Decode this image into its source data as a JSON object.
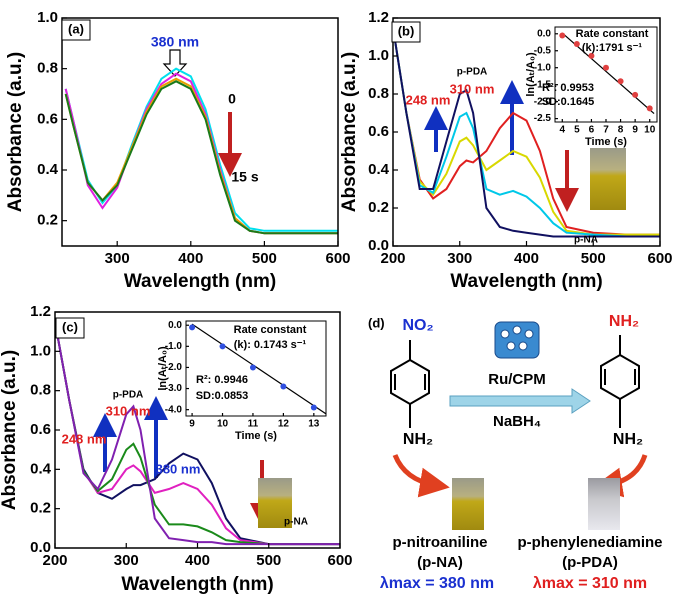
{
  "chart_data": [
    {
      "type": "line",
      "panel_label": "(a)",
      "xlabel": "Wavelength (nm)",
      "ylabel": "Absorbance (a.u.)",
      "xlim": [
        225,
        600
      ],
      "xticks": [
        300,
        400,
        500,
        600
      ],
      "ylim": [
        0.1,
        1.0
      ],
      "yticks": [
        0.2,
        0.4,
        0.6,
        0.8,
        {
          "value": 1.0,
          "label": "1.0"
        }
      ],
      "x": [
        230,
        240,
        260,
        280,
        300,
        320,
        340,
        360,
        380,
        400,
        420,
        440,
        460,
        480,
        500,
        550,
        600
      ],
      "series": [
        {
          "color": "#00e0ee",
          "values": [
            0.72,
            0.6,
            0.36,
            0.27,
            0.34,
            0.5,
            0.65,
            0.76,
            0.8,
            0.77,
            0.64,
            0.42,
            0.23,
            0.17,
            0.16,
            0.16,
            0.16
          ]
        },
        {
          "color": "#e020e0",
          "values": [
            0.72,
            0.6,
            0.34,
            0.25,
            0.33,
            0.49,
            0.64,
            0.74,
            0.78,
            0.75,
            0.62,
            0.4,
            0.21,
            0.16,
            0.15,
            0.15,
            0.15
          ]
        },
        {
          "color": "#e8a000",
          "values": [
            0.7,
            0.58,
            0.35,
            0.28,
            0.35,
            0.49,
            0.63,
            0.73,
            0.76,
            0.73,
            0.61,
            0.39,
            0.21,
            0.16,
            0.15,
            0.15,
            0.15
          ]
        },
        {
          "color": "#1a7a1a",
          "values": [
            0.7,
            0.58,
            0.35,
            0.28,
            0.34,
            0.48,
            0.62,
            0.72,
            0.75,
            0.72,
            0.6,
            0.38,
            0.2,
            0.16,
            0.15,
            0.15,
            0.15
          ]
        }
      ],
      "annotations": [
        "380 nm",
        "0",
        "15 s"
      ]
    },
    {
      "type": "line",
      "panel_label": "(b)",
      "xlabel": "Wavelength (nm)",
      "ylabel": "Absorbance (a.u.)",
      "xlim": [
        200,
        600
      ],
      "xticks": [
        200,
        300,
        400,
        500,
        600
      ],
      "ylim": [
        0,
        1.2
      ],
      "yticks": [
        {
          "value": 0,
          "label": "0.0"
        },
        0.2,
        0.4,
        0.6,
        0.8,
        {
          "value": 1.0,
          "label": "1.0"
        },
        1.2
      ],
      "x": [
        200,
        220,
        240,
        260,
        280,
        300,
        310,
        320,
        340,
        360,
        380,
        400,
        420,
        440,
        460,
        500,
        550,
        600
      ],
      "series": [
        {
          "color": "#e02020",
          "values": [
            1.15,
            0.7,
            0.35,
            0.25,
            0.3,
            0.42,
            0.45,
            0.44,
            0.5,
            0.62,
            0.7,
            0.66,
            0.5,
            0.25,
            0.1,
            0.07,
            0.06,
            0.06
          ]
        },
        {
          "color": "#d8d800",
          "values": [
            1.15,
            0.7,
            0.34,
            0.27,
            0.38,
            0.55,
            0.57,
            0.53,
            0.4,
            0.45,
            0.5,
            0.47,
            0.36,
            0.18,
            0.08,
            0.06,
            0.06,
            0.06
          ]
        },
        {
          "color": "#00c8e8",
          "values": [
            1.15,
            0.7,
            0.32,
            0.28,
            0.47,
            0.68,
            0.7,
            0.62,
            0.3,
            0.27,
            0.29,
            0.26,
            0.2,
            0.12,
            0.07,
            0.06,
            0.05,
            0.05
          ]
        },
        {
          "color": "#101060",
          "values": [
            1.15,
            0.7,
            0.3,
            0.3,
            0.55,
            0.8,
            0.82,
            0.7,
            0.2,
            0.1,
            0.08,
            0.07,
            0.06,
            0.05,
            0.05,
            0.05,
            0.05,
            0.05
          ]
        }
      ],
      "annotations": [
        "p-PDA",
        "310 nm",
        "248 nm",
        "p-NA"
      ]
    },
    {
      "type": "scatter",
      "xlabel": "Time (s)",
      "ylabel": "ln(Aₜ/A₀)",
      "xlim": [
        3.5,
        10.5
      ],
      "xticks": [
        4,
        5,
        6,
        7,
        8,
        9,
        10
      ],
      "ylim": [
        -2.6,
        0.2
      ],
      "yticks": [
        {
          "value": 0,
          "label": "0.0"
        },
        -0.5,
        {
          "value": -1.0,
          "label": "-1.0"
        },
        -1.5,
        {
          "value": -2.0,
          "label": "-2.0"
        },
        -2.5
      ],
      "x": [
        4,
        5,
        6,
        7,
        8,
        9,
        10
      ],
      "values": [
        -0.05,
        -0.3,
        -0.65,
        -1.0,
        -1.4,
        -1.8,
        -2.2
      ],
      "color": "#e04040",
      "fit": {
        "x": [
          4,
          10.3
        ],
        "values": [
          0.02,
          -2.35
        ],
        "color": "#000000"
      },
      "annotations": [
        "Rate constant",
        "(k):1791 s⁻¹",
        "R²: 0.9953",
        "SD:0.1645"
      ]
    },
    {
      "type": "line",
      "panel_label": "(c)",
      "xlabel": "Wavelength (nm)",
      "ylabel": "Absorbance (a.u.)",
      "xlim": [
        200,
        600
      ],
      "xticks": [
        200,
        300,
        400,
        500,
        600
      ],
      "ylim": [
        0,
        1.2
      ],
      "yticks": [
        {
          "value": 0,
          "label": "0.0"
        },
        0.2,
        0.4,
        0.6,
        0.8,
        {
          "value": 1.0,
          "label": "1.0"
        },
        1.2
      ],
      "x": [
        200,
        220,
        240,
        260,
        280,
        300,
        310,
        320,
        340,
        360,
        380,
        400,
        420,
        440,
        460,
        500,
        550,
        600
      ],
      "series": [
        {
          "color": "#101060",
          "values": [
            1.15,
            0.75,
            0.4,
            0.28,
            0.25,
            0.3,
            0.32,
            0.32,
            0.35,
            0.43,
            0.48,
            0.45,
            0.33,
            0.15,
            0.05,
            0.02,
            0.02,
            0.02
          ]
        },
        {
          "color": "#e020c0",
          "values": [
            1.15,
            0.75,
            0.39,
            0.28,
            0.3,
            0.4,
            0.42,
            0.39,
            0.28,
            0.3,
            0.33,
            0.3,
            0.22,
            0.1,
            0.04,
            0.02,
            0.02,
            0.02
          ]
        },
        {
          "color": "#1a8a1a",
          "values": [
            1.15,
            0.75,
            0.39,
            0.29,
            0.35,
            0.5,
            0.53,
            0.46,
            0.22,
            0.12,
            0.12,
            0.11,
            0.08,
            0.04,
            0.03,
            0.02,
            0.02,
            0.02
          ]
        },
        {
          "color": "#8020b0",
          "values": [
            1.15,
            0.75,
            0.38,
            0.3,
            0.45,
            0.68,
            0.72,
            0.6,
            0.15,
            0.05,
            0.04,
            0.03,
            0.03,
            0.02,
            0.02,
            0.02,
            0.02,
            0.02
          ]
        }
      ],
      "annotations": [
        "p-PDA",
        "310 nm",
        "248 nm",
        "380 nm",
        "p-NA"
      ]
    },
    {
      "type": "scatter",
      "xlabel": "Time (s)",
      "ylabel": "ln(Aₜ/A₀)",
      "xlim": [
        8.8,
        13.4
      ],
      "xticks": [
        9,
        10,
        11,
        12,
        13
      ],
      "ylim": [
        -4.3,
        0.2
      ],
      "yticks": [
        {
          "value": 0,
          "label": "0.0"
        },
        {
          "value": -1.0,
          "label": "-1.0"
        },
        {
          "value": -2.0,
          "label": "-2.0"
        },
        {
          "value": -3.0,
          "label": "-3.0"
        },
        {
          "value": -4.0,
          "label": "-4.0"
        }
      ],
      "x": [
        9,
        10,
        11,
        12,
        13
      ],
      "values": [
        -0.1,
        -1.0,
        -2.0,
        -2.9,
        -3.9
      ],
      "color": "#3050e0",
      "fit": {
        "x": [
          9,
          13.4
        ],
        "values": [
          0.05,
          -4.2
        ],
        "color": "#000000"
      },
      "annotations": [
        "Rate constant",
        "(k): 0.1743 s⁻¹",
        "R²: 0.9946",
        "SD:0.0853"
      ]
    }
  ],
  "scheme": {
    "label": "(d)",
    "reactant_group": "NO₂",
    "reactant_amine": "NH₂",
    "product_top": "NH₂",
    "product_bottom": "NH₂",
    "catalyst": "Ru/CPM",
    "reductant": "NaBH₄",
    "reactant_name": "p-nitroaniline",
    "reactant_abbr": "(p-NA)",
    "product_name": "p-phenylenediamine",
    "product_abbr": "(p-PDA)",
    "reactant_lambda": "λmax = 380 nm",
    "product_lambda": "λmax = 310 nm"
  }
}
